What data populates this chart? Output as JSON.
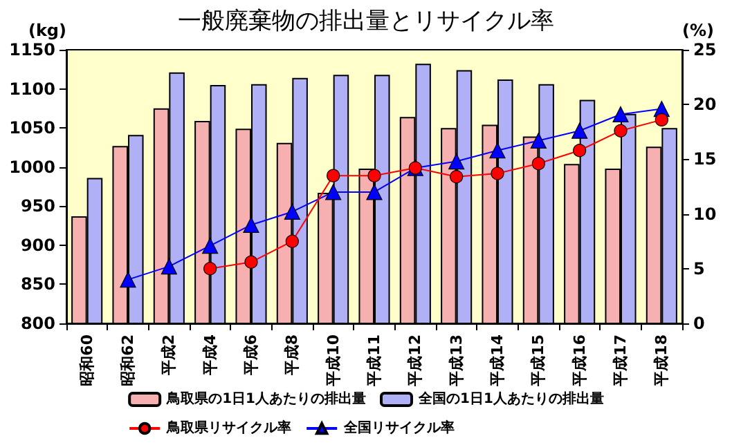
{
  "chart_data": {
    "type": "bar",
    "title": "一般廃棄物の排出量とリサイクル率",
    "ylabel": "(kg)",
    "y2label": "(%)",
    "categories": [
      "昭和60",
      "昭和62",
      "平成2",
      "平成4",
      "平成6",
      "平成8",
      "平成10",
      "平成11",
      "平成12",
      "平成13",
      "平成14",
      "平成15",
      "平成16",
      "平成17",
      "平成18"
    ],
    "series": [
      {
        "name": "鳥取県の1日1人あたりの排出量",
        "color": "#f7b0b0",
        "values": [
          937,
          1027,
          1075,
          1059,
          1049,
          1031,
          967,
          998,
          1064,
          1050,
          1054,
          1039,
          1004,
          998,
          1026
        ]
      },
      {
        "name": "全国の1日1人あたりの排出量",
        "color": "#b0b0f7",
        "values": [
          986,
          1041,
          1121,
          1105,
          1106,
          1114,
          1118,
          1118,
          1132,
          1124,
          1112,
          1106,
          1086,
          1068,
          1050
        ]
      },
      {
        "name": "鳥取県リサイクル率",
        "type": "line",
        "axis": "y2",
        "marker": "circle",
        "color": "#ff0000",
        "values": [
          null,
          null,
          null,
          5.0,
          5.6,
          7.5,
          13.5,
          13.5,
          14.2,
          13.4,
          13.7,
          14.6,
          15.8,
          17.6,
          18.6
        ]
      },
      {
        "name": "全国リサイクル率",
        "type": "line",
        "axis": "y2",
        "marker": "triangle",
        "color": "#0000ff",
        "values": [
          null,
          4.0,
          5.2,
          7.1,
          9.0,
          10.2,
          12.0,
          12.0,
          14.2,
          14.8,
          15.8,
          16.7,
          17.6,
          19.1,
          19.6
        ]
      }
    ],
    "ylim": [
      800,
      1150
    ],
    "yticks": [
      800,
      850,
      900,
      950,
      1000,
      1050,
      1100,
      1150
    ],
    "y2lim": [
      0,
      25
    ],
    "y2ticks": [
      0,
      5,
      10,
      15,
      20,
      25
    ],
    "grid": false,
    "legend": "bottom"
  }
}
